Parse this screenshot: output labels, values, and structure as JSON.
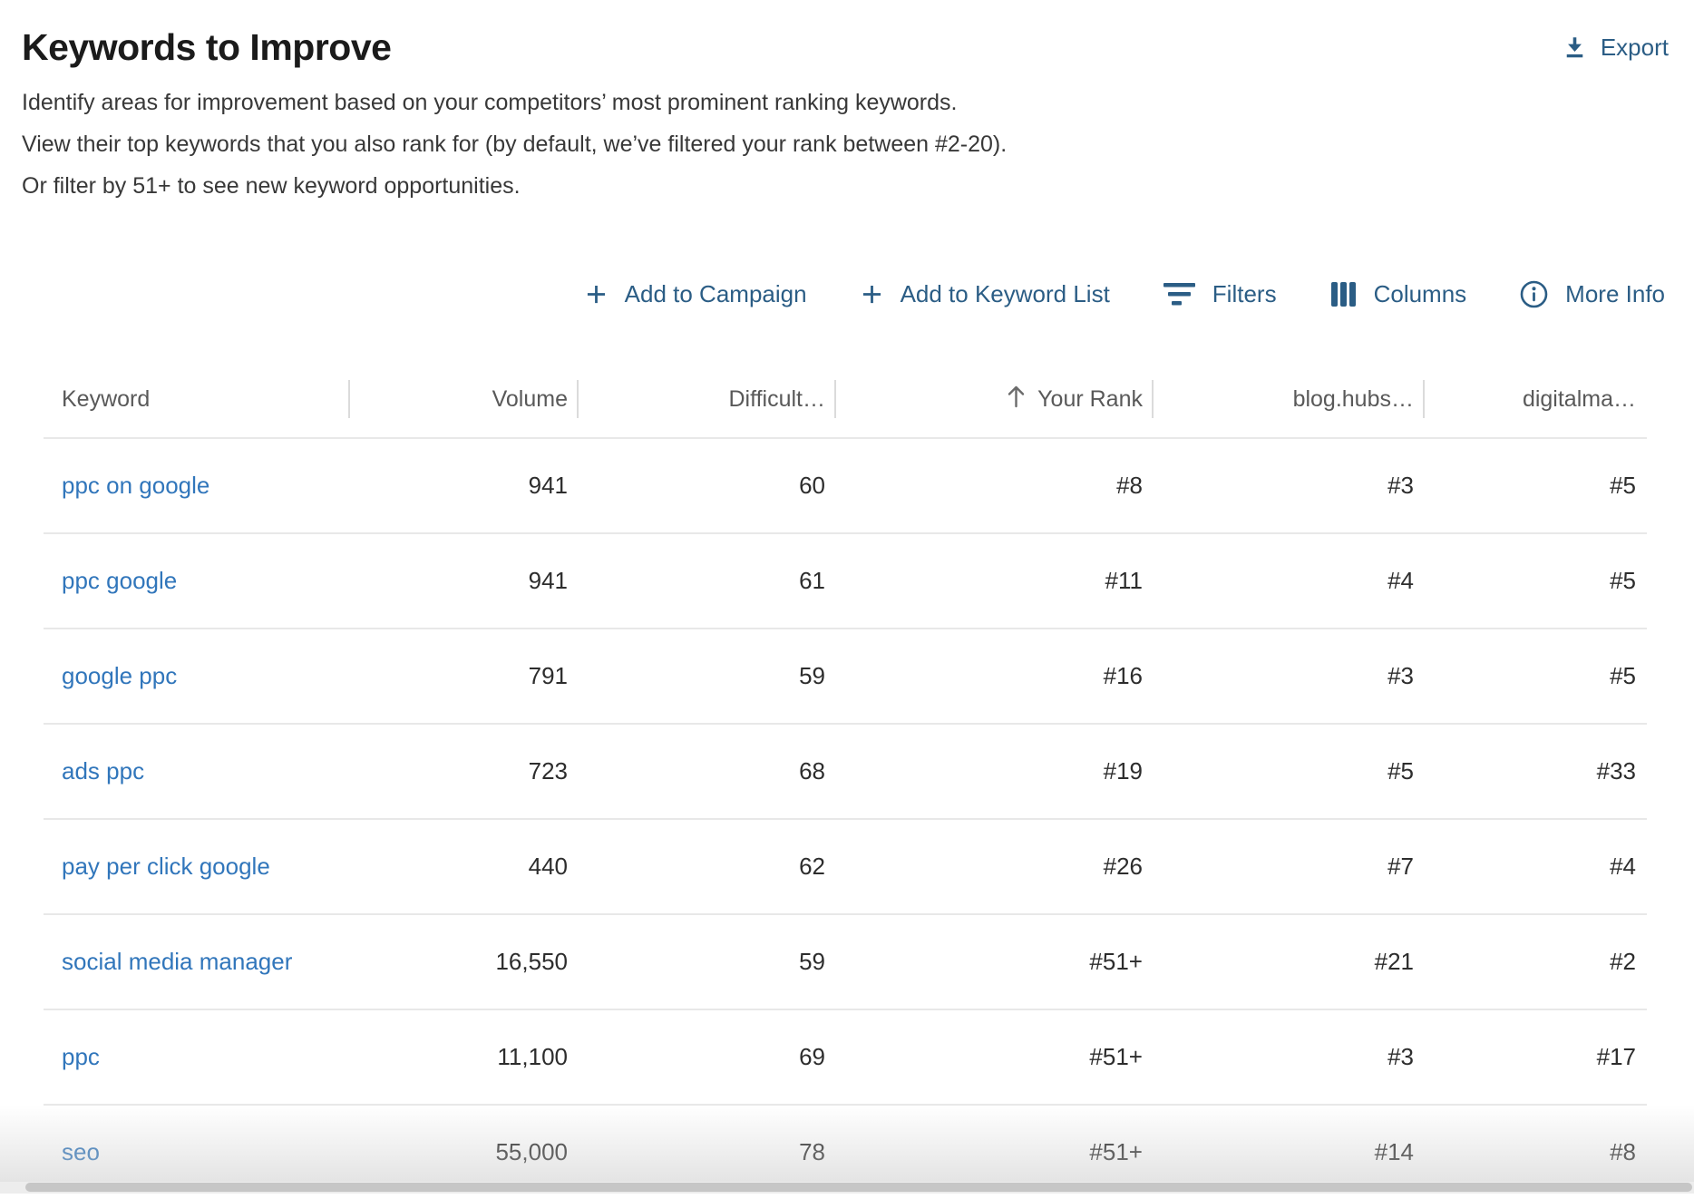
{
  "page": {
    "title": "Keywords to Improve",
    "description_lines": [
      "Identify areas for improvement based on your competitors’ most prominent ranking keywords.",
      "View their top keywords that you also rank for (by default, we’ve filtered your rank between #2-20).",
      "Or filter by 51+ to see new keyword opportunities."
    ],
    "export_label": "Export"
  },
  "toolbar": {
    "add_to_campaign_label": "Add to Campaign",
    "add_to_keyword_list_label": "Add to Keyword List",
    "filters_label": "Filters",
    "columns_label": "Columns",
    "more_info_label": "More Info"
  },
  "table": {
    "columns": [
      {
        "key": "keyword",
        "label": "Keyword",
        "align": "left"
      },
      {
        "key": "volume",
        "label": "Volume",
        "align": "right"
      },
      {
        "key": "difficulty",
        "label": "Difficult…",
        "align": "right"
      },
      {
        "key": "your-rank",
        "label": "Your Rank",
        "align": "right",
        "sorted": "asc"
      },
      {
        "key": "blog-hubs",
        "label": "blog.hubs…",
        "align": "right"
      },
      {
        "key": "digitalma",
        "label": "digitalma…",
        "align": "right"
      }
    ],
    "rows": [
      {
        "cells": [
          "ppc on google",
          "941",
          "60",
          "#8",
          "#3",
          "#5"
        ]
      },
      {
        "cells": [
          "ppc google",
          "941",
          "61",
          "#11",
          "#4",
          "#5"
        ]
      },
      {
        "cells": [
          "google ppc",
          "791",
          "59",
          "#16",
          "#3",
          "#5"
        ]
      },
      {
        "cells": [
          "ads ppc",
          "723",
          "68",
          "#19",
          "#5",
          "#33"
        ]
      },
      {
        "cells": [
          "pay per click google",
          "440",
          "62",
          "#26",
          "#7",
          "#4"
        ]
      },
      {
        "cells": [
          "social media manager",
          "16,550",
          "59",
          "#51+",
          "#21",
          "#2"
        ]
      },
      {
        "cells": [
          "ppc",
          "11,100",
          "69",
          "#51+",
          "#3",
          "#17"
        ]
      },
      {
        "cells": [
          "seo",
          "55,000",
          "78",
          "#51+",
          "#14",
          "#8"
        ]
      }
    ]
  },
  "colors": {
    "action_blue": "#2b5d85",
    "link_blue": "#3176bb",
    "title_text": "#1b1b1b",
    "header_text": "#595959",
    "row_border": "#e8e8e8"
  }
}
